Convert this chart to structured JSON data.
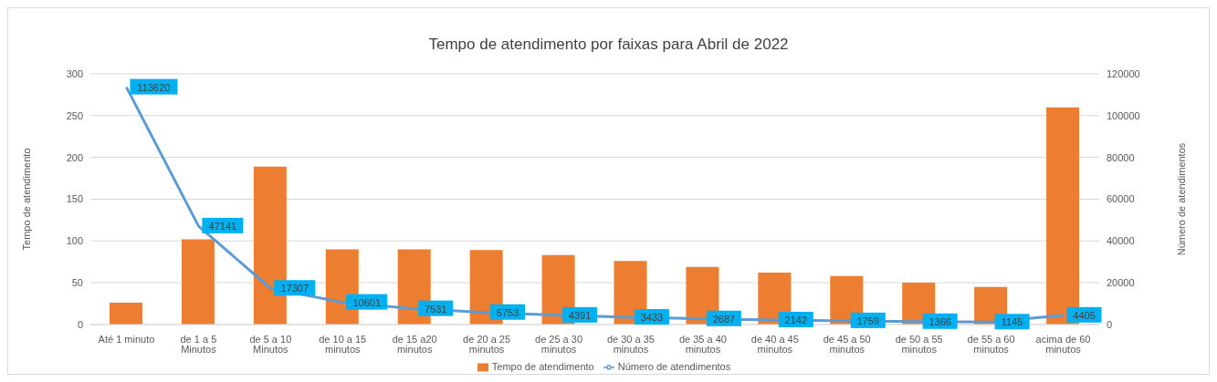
{
  "chart_data": {
    "type": "bar",
    "title": "Tempo de atendimento por faixas para Abril de 2022",
    "ylabel": "Tempo de atendimento",
    "y2label": "Número de atendimentos",
    "categories": [
      "Até 1 minuto",
      "de 1 a 5 Minutos",
      "de 5 a 10 Minutos",
      "de 10 a 15 minutos",
      "de 15 a20 minutos",
      "de 20 a 25 minutos",
      "de 25 a 30 minutos",
      "de 30 a 35 minutos",
      "de 35 a 40 minutos",
      "de 40 a 45 minutos",
      "de 45 a 50 minutos",
      "de 50 a 55 minutos",
      "de 55 a 60 minutos",
      "acima de 60 minutos"
    ],
    "series": [
      {
        "name": "Tempo de atendimento",
        "color": "#ed7d31",
        "values": [
          26,
          102,
          189,
          90,
          90,
          89,
          83,
          76,
          69,
          62,
          58,
          50,
          45,
          260
        ]
      },
      {
        "name": "Número de atendimentos",
        "type": "line",
        "axis": "y2",
        "color": "#5b9bd5",
        "values": [
          113620,
          47141,
          17307,
          10601,
          7531,
          5753,
          4391,
          3433,
          2687,
          2142,
          1759,
          1366,
          1145,
          4405
        ],
        "value_labels": [
          "113620",
          "47141",
          "17307",
          "10601",
          "7531",
          "5753",
          "4391",
          "3433",
          "2687",
          "2142",
          "1759",
          "1366",
          "1145",
          "4405"
        ]
      }
    ],
    "ylim": [
      0,
      300
    ],
    "yticks": [
      0,
      50,
      100,
      150,
      200,
      250,
      300
    ],
    "y2lim": [
      0,
      120000
    ],
    "y2ticks": [
      0,
      20000,
      40000,
      60000,
      80000,
      100000,
      120000
    ],
    "grid": "y",
    "legend": "bottom",
    "marker": "none"
  }
}
